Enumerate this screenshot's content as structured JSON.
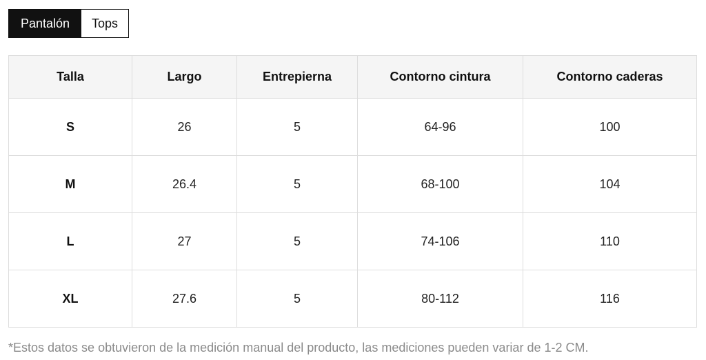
{
  "tabs": [
    {
      "label": "Pantalón",
      "active": true
    },
    {
      "label": "Tops",
      "active": false
    }
  ],
  "table": {
    "headers": [
      "Talla",
      "Largo",
      "Entrepierna",
      "Contorno cintura",
      "Contorno caderas"
    ],
    "rows": [
      [
        "S",
        "26",
        "5",
        "64-96",
        "100"
      ],
      [
        "M",
        "26.4",
        "5",
        "68-100",
        "104"
      ],
      [
        "L",
        "27",
        "5",
        "74-106",
        "110"
      ],
      [
        "XL",
        "27.6",
        "5",
        "80-112",
        "116"
      ]
    ]
  },
  "footnote": "*Estos datos se obtuvieron de la medición manual del producto, las mediciones pueden variar de 1-2 CM.",
  "colors": {
    "active_tab_bg": "#111111",
    "header_bg": "#f5f5f5",
    "border": "#dddddd",
    "footnote_text": "#8a8a8a"
  }
}
